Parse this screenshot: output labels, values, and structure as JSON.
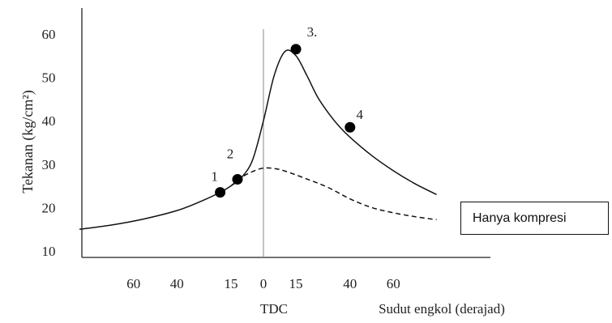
{
  "chart_data": {
    "type": "line",
    "ylabel": "Tekanan (kg/cm²)",
    "xlabel": "Sudut engkol (derajad)",
    "tdc_label": "TDC",
    "ylim": [
      10,
      65
    ],
    "yticks": [
      10,
      20,
      30,
      40,
      50,
      60
    ],
    "xticks": [
      {
        "label": "60",
        "x": -60
      },
      {
        "label": "40",
        "x": -40
      },
      {
        "label": "15",
        "x": -15
      },
      {
        "label": "0",
        "x": 0
      },
      {
        "label": "15",
        "x": 15
      },
      {
        "label": "40",
        "x": 40
      },
      {
        "label": "60",
        "x": 60
      }
    ],
    "series": [
      {
        "name": "",
        "style": "solid",
        "x": [
          -85,
          -70,
          -55,
          -40,
          -30,
          -20,
          -15,
          -10,
          -5,
          0,
          5,
          10,
          15,
          20,
          25,
          30,
          35,
          40,
          50,
          60,
          70,
          80
        ],
        "y": [
          15,
          16,
          17.4,
          19.3,
          21.2,
          23.5,
          25,
          27,
          31,
          40,
          50.5,
          56,
          55,
          50.5,
          45.5,
          41.8,
          38.7,
          36.2,
          32,
          28.5,
          25.5,
          23
        ]
      },
      {
        "name": "Hanya kompresi",
        "style": "dashed",
        "x": [
          -15,
          -10,
          -5,
          0,
          5,
          10,
          20,
          30,
          40,
          50,
          60,
          70,
          80
        ],
        "y": [
          25,
          27,
          28.3,
          29.1,
          29,
          28.4,
          26.6,
          24.6,
          22,
          20,
          18.8,
          17.9,
          17.2
        ]
      }
    ],
    "points": [
      {
        "label": "1",
        "x": -20,
        "y": 23.5
      },
      {
        "label": "2",
        "x": -12,
        "y": 26.5
      },
      {
        "label": "3.",
        "x": 15,
        "y": 56.5
      },
      {
        "label": "4",
        "x": 40,
        "y": 38.5
      }
    ],
    "legend": "Hanya kompresi"
  }
}
